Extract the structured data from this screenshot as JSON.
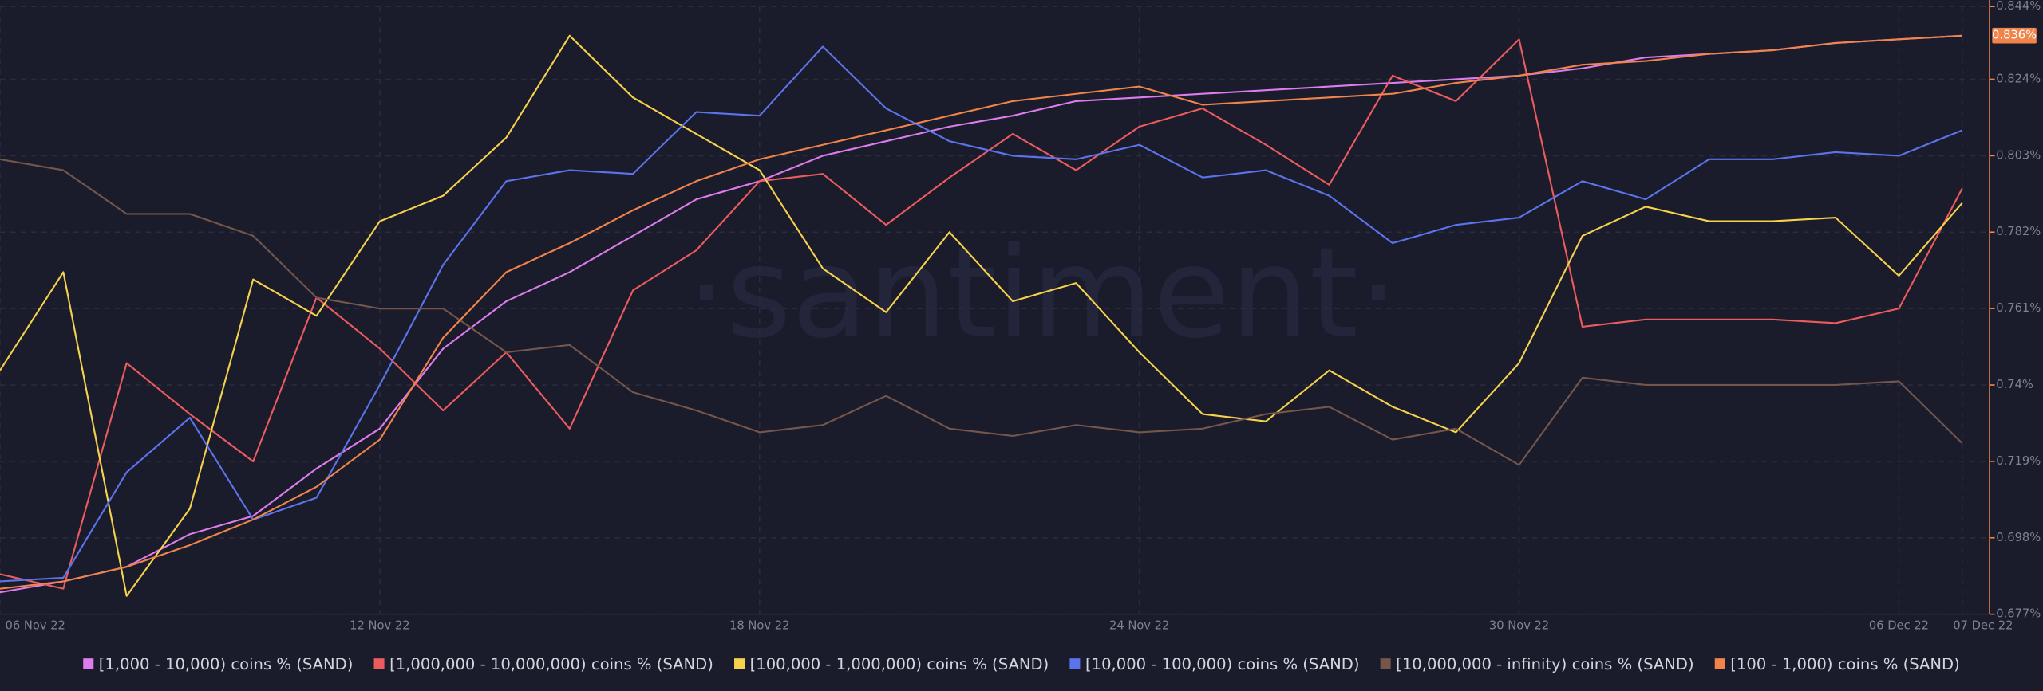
{
  "chart_data": {
    "type": "line",
    "watermark": "·santiment·",
    "categories": [
      "06 Nov 22",
      null,
      null,
      null,
      null,
      null,
      "12 Nov 22",
      null,
      null,
      null,
      null,
      null,
      "18 Nov 22",
      null,
      null,
      null,
      null,
      null,
      "24 Nov 22",
      null,
      null,
      null,
      null,
      null,
      "30 Nov 22",
      null,
      null,
      null,
      null,
      null,
      "06 Dec 22",
      "07 Dec 22"
    ],
    "ylim": [
      0.677,
      0.844
    ],
    "yticks": [
      {
        "value": 0.677,
        "label": "0.677%"
      },
      {
        "value": 0.698,
        "label": "0.698%"
      },
      {
        "value": 0.719,
        "label": "0.719%"
      },
      {
        "value": 0.74,
        "label": "0.74%"
      },
      {
        "value": 0.761,
        "label": "0.761%"
      },
      {
        "value": 0.782,
        "label": "0.782%"
      },
      {
        "value": 0.803,
        "label": "0.803%"
      },
      {
        "value": 0.824,
        "label": "0.824%"
      },
      {
        "value": 0.844,
        "label": "0.844%"
      }
    ],
    "grid": true,
    "legend": "bottom",
    "current_value": {
      "value": 0.836,
      "label": "0.836%"
    },
    "series": [
      {
        "name": "[1,000 - 10,000) coins % (SAND)",
        "color": "#dd7cec",
        "values": [
          0.683,
          0.686,
          0.69,
          0.699,
          0.704,
          0.717,
          0.728,
          0.75,
          0.763,
          0.771,
          0.781,
          0.791,
          0.796,
          0.803,
          0.807,
          0.811,
          0.814,
          0.818,
          0.819,
          0.82,
          0.821,
          0.822,
          0.823,
          0.824,
          0.825,
          0.827,
          0.83,
          0.831,
          0.832,
          0.834,
          0.835,
          0.836
        ]
      },
      {
        "name": "[1,000,000 - 10,000,000) coins % (SAND)",
        "color": "#ec5b5e",
        "values": [
          0.688,
          0.684,
          0.746,
          0.732,
          0.719,
          0.764,
          0.75,
          0.733,
          0.749,
          0.728,
          0.766,
          0.777,
          0.796,
          0.798,
          0.784,
          0.797,
          0.809,
          0.799,
          0.811,
          0.816,
          0.806,
          0.795,
          0.825,
          0.818,
          0.835,
          0.756,
          0.758,
          0.758,
          0.758,
          0.757,
          0.761,
          0.794
        ]
      },
      {
        "name": "[100,000  - 1,000,000) coins % (SAND)",
        "color": "#f5d14c",
        "values": [
          0.744,
          0.771,
          0.682,
          0.706,
          0.769,
          0.759,
          0.785,
          0.792,
          0.808,
          0.836,
          0.819,
          0.809,
          0.799,
          0.772,
          0.76,
          0.782,
          0.763,
          0.768,
          0.749,
          0.732,
          0.73,
          0.744,
          0.734,
          0.727,
          0.746,
          0.781,
          0.789,
          0.785,
          0.785,
          0.786,
          0.77,
          0.79
        ]
      },
      {
        "name": "[10,000 - 100,000) coins % (SAND)",
        "color": "#5b74ec",
        "values": [
          0.686,
          0.687,
          0.716,
          0.731,
          0.703,
          0.709,
          0.74,
          0.773,
          0.796,
          0.799,
          0.798,
          0.815,
          0.814,
          0.833,
          0.816,
          0.807,
          0.803,
          0.802,
          0.806,
          0.797,
          0.799,
          0.792,
          0.779,
          0.784,
          0.786,
          0.796,
          0.791,
          0.802,
          0.802,
          0.804,
          0.803,
          0.81
        ]
      },
      {
        "name": "[10,000,000 - infinity) coins % (SAND)",
        "color": "#75564b",
        "values": [
          0.802,
          0.799,
          0.787,
          0.787,
          0.781,
          0.764,
          0.761,
          0.761,
          0.749,
          0.751,
          0.738,
          0.733,
          0.727,
          0.729,
          0.737,
          0.728,
          0.726,
          0.729,
          0.727,
          0.728,
          0.732,
          0.734,
          0.725,
          0.728,
          0.718,
          0.742,
          0.74,
          0.74,
          0.74,
          0.74,
          0.741,
          0.724
        ]
      },
      {
        "name": "[100 - 1,000) coins % (SAND)",
        "color": "#f0844b",
        "values": [
          0.684,
          0.686,
          0.69,
          0.696,
          0.703,
          0.712,
          0.725,
          0.753,
          0.771,
          0.779,
          0.788,
          0.796,
          0.802,
          0.806,
          0.81,
          0.814,
          0.818,
          0.82,
          0.822,
          0.817,
          0.818,
          0.819,
          0.82,
          0.823,
          0.825,
          0.828,
          0.829,
          0.831,
          0.832,
          0.834,
          0.835,
          0.836
        ]
      }
    ]
  }
}
